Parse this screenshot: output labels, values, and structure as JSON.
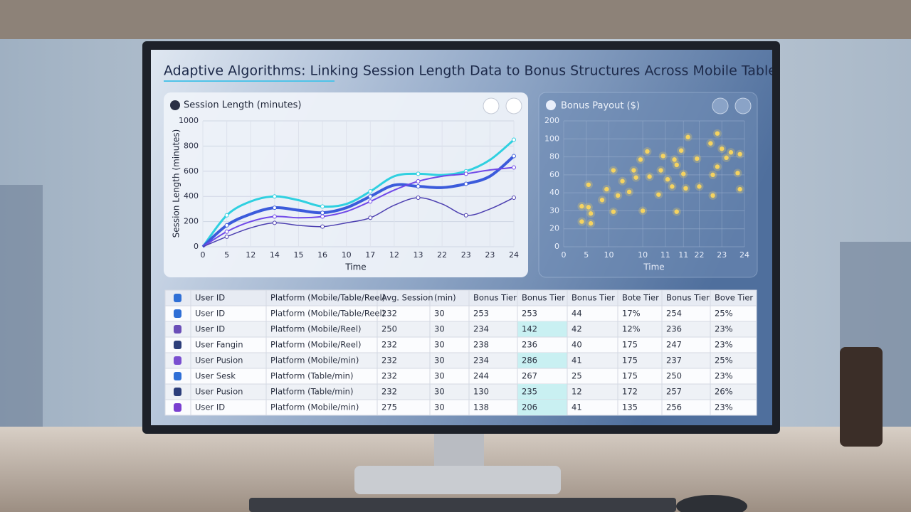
{
  "header": {
    "title": "Adaptive Algorithms: Linking Session Length Data to Bonus Structures Across Mobile Table and Reel Pla"
  },
  "chart_data": [
    {
      "type": "line",
      "title": "Session Length (minutes)",
      "ylabel": "Session Length (minutes)",
      "xlabel": "Time",
      "categories": [
        "0",
        "5",
        "12",
        "14",
        "15",
        "16",
        "10",
        "17",
        "12",
        "13",
        "22",
        "23",
        "23",
        "24"
      ],
      "ylim": [
        0,
        1000
      ],
      "yticks": [
        0,
        200,
        400,
        600,
        800,
        1000
      ],
      "grid": true,
      "series": [
        {
          "color": "#2fd0e0",
          "values": [
            0,
            250,
            360,
            400,
            370,
            320,
            340,
            440,
            560,
            580,
            570,
            600,
            690,
            850
          ]
        },
        {
          "color": "#3b5bdb",
          "values": [
            0,
            170,
            260,
            310,
            290,
            270,
            310,
            400,
            490,
            480,
            470,
            500,
            560,
            720
          ]
        },
        {
          "color": "#7048e8",
          "values": [
            0,
            120,
            200,
            240,
            230,
            240,
            280,
            360,
            450,
            520,
            560,
            580,
            610,
            630
          ]
        },
        {
          "color": "#4c3fb0",
          "values": [
            0,
            80,
            150,
            190,
            170,
            160,
            190,
            230,
            330,
            390,
            340,
            250,
            300,
            390
          ]
        }
      ]
    },
    {
      "type": "scatter",
      "title": "Bonus Payout ($)",
      "xlabel": "Time",
      "color": "#f5d360",
      "grid": true,
      "xlim": [
        0,
        8
      ],
      "xticks": [
        0,
        {
          "value": 1,
          "label": "5"
        },
        {
          "value": 2,
          "label": "10"
        },
        {
          "value": 3.5,
          "label": "10"
        },
        {
          "value": 4.5,
          "label": "11"
        },
        {
          "value": 5.3,
          "label": "11"
        },
        {
          "value": 6,
          "label": "22"
        },
        {
          "value": 7,
          "label": "23"
        },
        {
          "value": 8,
          "label": "24"
        }
      ],
      "ylim": [
        0,
        140
      ],
      "yticks": [
        0,
        {
          "value": 20,
          "label": "20"
        },
        {
          "value": 40,
          "label": "30"
        },
        {
          "value": 60,
          "label": "40"
        },
        {
          "value": 80,
          "label": "60"
        },
        {
          "value": 100,
          "label": "80"
        },
        {
          "value": 120,
          "label": "100"
        },
        {
          "value": 140,
          "label": "200"
        }
      ],
      "x": [
        6.8,
        7.0,
        6.5,
        7.4,
        7.8,
        7.7,
        7.8,
        6.6,
        6.8,
        7.2,
        6.6,
        5.9,
        5.5,
        5.2,
        4.9,
        4.4,
        3.7,
        3.4,
        2.2,
        3.1,
        2.6,
        3.2,
        3.8,
        4.3,
        4.6,
        5.0,
        5.3,
        4.8,
        5.4,
        6.0,
        4.2,
        3.5,
        5.0,
        2.9,
        2.2,
        2.4,
        1.9,
        1.1,
        1.1,
        0.8,
        1.2,
        0.8,
        1.2,
        1.7
      ],
      "values": [
        126,
        109,
        115,
        105,
        103,
        82,
        64,
        57,
        89,
        99,
        80,
        98,
        122,
        107,
        97,
        101,
        106,
        97,
        85,
        85,
        73,
        77,
        78,
        85,
        75,
        91,
        81,
        67,
        65,
        67,
        58,
        40,
        39,
        61,
        39,
        57,
        64,
        69,
        44,
        45,
        37,
        28,
        26,
        52
      ]
    }
  ],
  "table": {
    "header": [
      "User ID",
      "Platform (Mobile/Table/Reel)",
      "Avg. Session",
      "(min)",
      "Bonus Tier",
      "Bonus Tier",
      "Bonus Tier",
      "Bote Tier",
      "Bonus Tier",
      "Bove Tier"
    ],
    "rows": [
      [
        "User ID",
        "Platform (Mobile/Table/Reel)",
        "232",
        "30",
        "253",
        "253",
        "44",
        "17%",
        "254",
        "25%"
      ],
      [
        "User ID",
        "Platform (Mobile/Reel)",
        "250",
        "30",
        "234",
        "142",
        "42",
        "12%",
        "236",
        "23%"
      ],
      [
        "User Fangin",
        "Platform (Mobile/Reel)",
        "232",
        "30",
        "238",
        "236",
        "40",
        "175",
        "247",
        "23%"
      ],
      [
        "User Pusion",
        "Platform (Mobile/min)",
        "232",
        "30",
        "234",
        "286",
        "41",
        "175",
        "237",
        "25%"
      ],
      [
        "User Sesk",
        "Platform (Table/min)",
        "232",
        "30",
        "244",
        "267",
        "25",
        "175",
        "250",
        "23%"
      ],
      [
        "User Pusion",
        "Platform (Table/min)",
        "232",
        "30",
        "130",
        "235",
        "12",
        "172",
        "257",
        "26%"
      ],
      [
        "User ID",
        "Platform (Mobile/min)",
        "275",
        "30",
        "138",
        "206",
        "41",
        "135",
        "256",
        "23%"
      ]
    ]
  }
}
